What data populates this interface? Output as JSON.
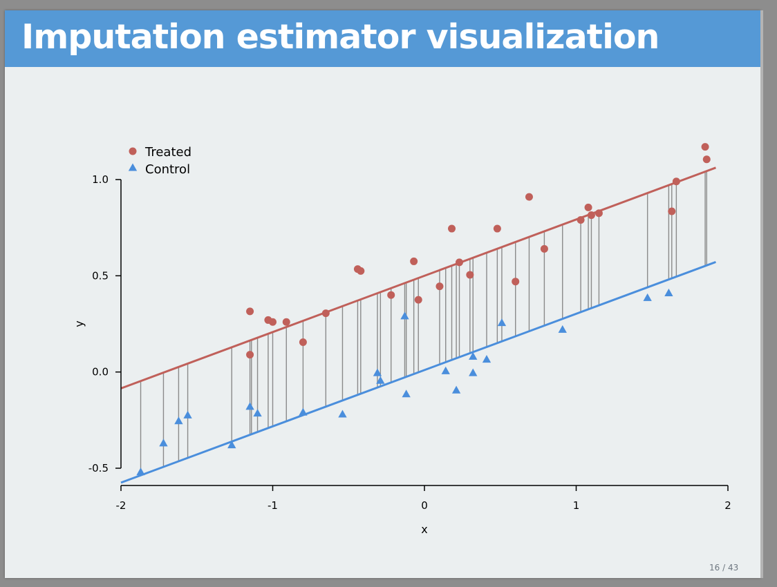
{
  "slide": {
    "title": "Imputation estimator visualization",
    "page_number": "16 / 43"
  },
  "colors": {
    "header": "#5599d6",
    "treated": "#c0605a",
    "control": "#4a8edc",
    "segment": "#8a8a8a",
    "axis": "#000000"
  },
  "chart_data": {
    "type": "scatter",
    "title": "",
    "xlabel": "x",
    "ylabel": "y",
    "xlim": [
      -2,
      2
    ],
    "ylim": [
      -0.5,
      1.0
    ],
    "x_ticks": [
      -2,
      -1,
      0,
      1,
      2
    ],
    "y_ticks": [
      -0.5,
      0.0,
      0.5,
      1.0
    ],
    "x_tick_labels": [
      "-2",
      "-1",
      "0",
      "1",
      "2"
    ],
    "y_tick_labels": [
      "-0.5",
      "0.0",
      "0.5",
      "1.0"
    ],
    "grid": false,
    "legend": {
      "position": "top-left",
      "entries": [
        {
          "label": "Treated",
          "marker": "circle"
        },
        {
          "label": "Control",
          "marker": "triangle"
        }
      ]
    },
    "fit_lines": [
      {
        "name": "Treated fit",
        "intercept": 0.5,
        "slope": 0.2925
      },
      {
        "name": "Control fit",
        "intercept": 0.01,
        "slope": 0.2925
      }
    ],
    "x_range_lines": [
      -2.0,
      1.92
    ],
    "series": [
      {
        "name": "Treated",
        "x": [
          -1.15,
          -1.15,
          -1.03,
          -1.0,
          -0.91,
          -0.8,
          -0.65,
          -0.44,
          -0.42,
          -0.22,
          -0.07,
          -0.04,
          0.1,
          0.18,
          0.23,
          0.3,
          0.48,
          0.6,
          0.69,
          0.79,
          1.03,
          1.08,
          1.1,
          1.15,
          1.63,
          1.66,
          1.85,
          1.86
        ],
        "y": [
          0.315,
          0.09,
          0.27,
          0.26,
          0.26,
          0.155,
          0.305,
          0.535,
          0.525,
          0.4,
          0.575,
          0.375,
          0.445,
          0.745,
          0.57,
          0.505,
          0.745,
          0.47,
          0.91,
          0.64,
          0.79,
          0.855,
          0.815,
          0.825,
          0.835,
          0.99,
          1.17,
          1.105
        ]
      },
      {
        "name": "Control",
        "x": [
          -1.87,
          -1.72,
          -1.62,
          -1.56,
          -1.27,
          -1.15,
          -1.1,
          -0.8,
          -0.54,
          -0.31,
          -0.29,
          -0.13,
          -0.12,
          0.14,
          0.21,
          0.32,
          0.32,
          0.41,
          0.51,
          0.91,
          1.47,
          1.61
        ],
        "y": [
          -0.52,
          -0.37,
          -0.255,
          -0.225,
          -0.38,
          -0.18,
          -0.215,
          -0.21,
          -0.22,
          -0.005,
          -0.045,
          0.29,
          -0.115,
          0.005,
          -0.095,
          0.08,
          -0.005,
          0.065,
          0.255,
          0.22,
          0.385,
          0.41
        ]
      }
    ],
    "imputation_segments_x": [
      -1.87,
      -1.72,
      -1.62,
      -1.56,
      -1.27,
      -1.15,
      -1.14,
      -1.1,
      -1.03,
      -1.0,
      -0.91,
      -0.8,
      -0.65,
      -0.54,
      -0.44,
      -0.42,
      -0.31,
      -0.29,
      -0.22,
      -0.13,
      -0.12,
      -0.07,
      -0.04,
      0.1,
      0.14,
      0.18,
      0.21,
      0.23,
      0.3,
      0.32,
      0.41,
      0.48,
      0.51,
      0.6,
      0.69,
      0.79,
      0.91,
      1.03,
      1.08,
      1.1,
      1.15,
      1.47,
      1.61,
      1.63,
      1.66,
      1.85,
      1.86
    ]
  }
}
